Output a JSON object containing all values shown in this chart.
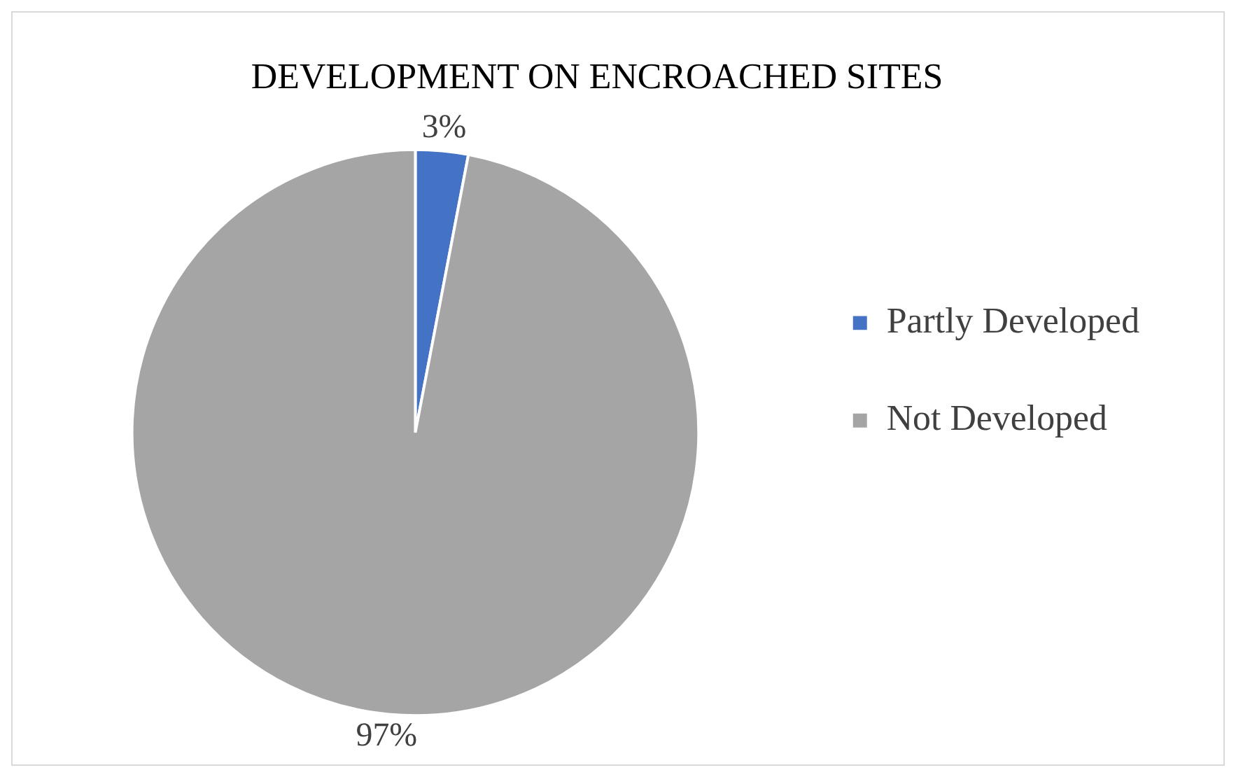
{
  "chart_data": {
    "type": "pie",
    "title": "DEVELOPMENT ON ENCROACHED SITES",
    "categories": [
      "Partly Developed",
      "Not Developed"
    ],
    "values": [
      3,
      97
    ],
    "colors": [
      "#4472c4",
      "#a5a5a5"
    ],
    "value_labels": [
      "3%",
      "97%"
    ],
    "legend": "right"
  }
}
